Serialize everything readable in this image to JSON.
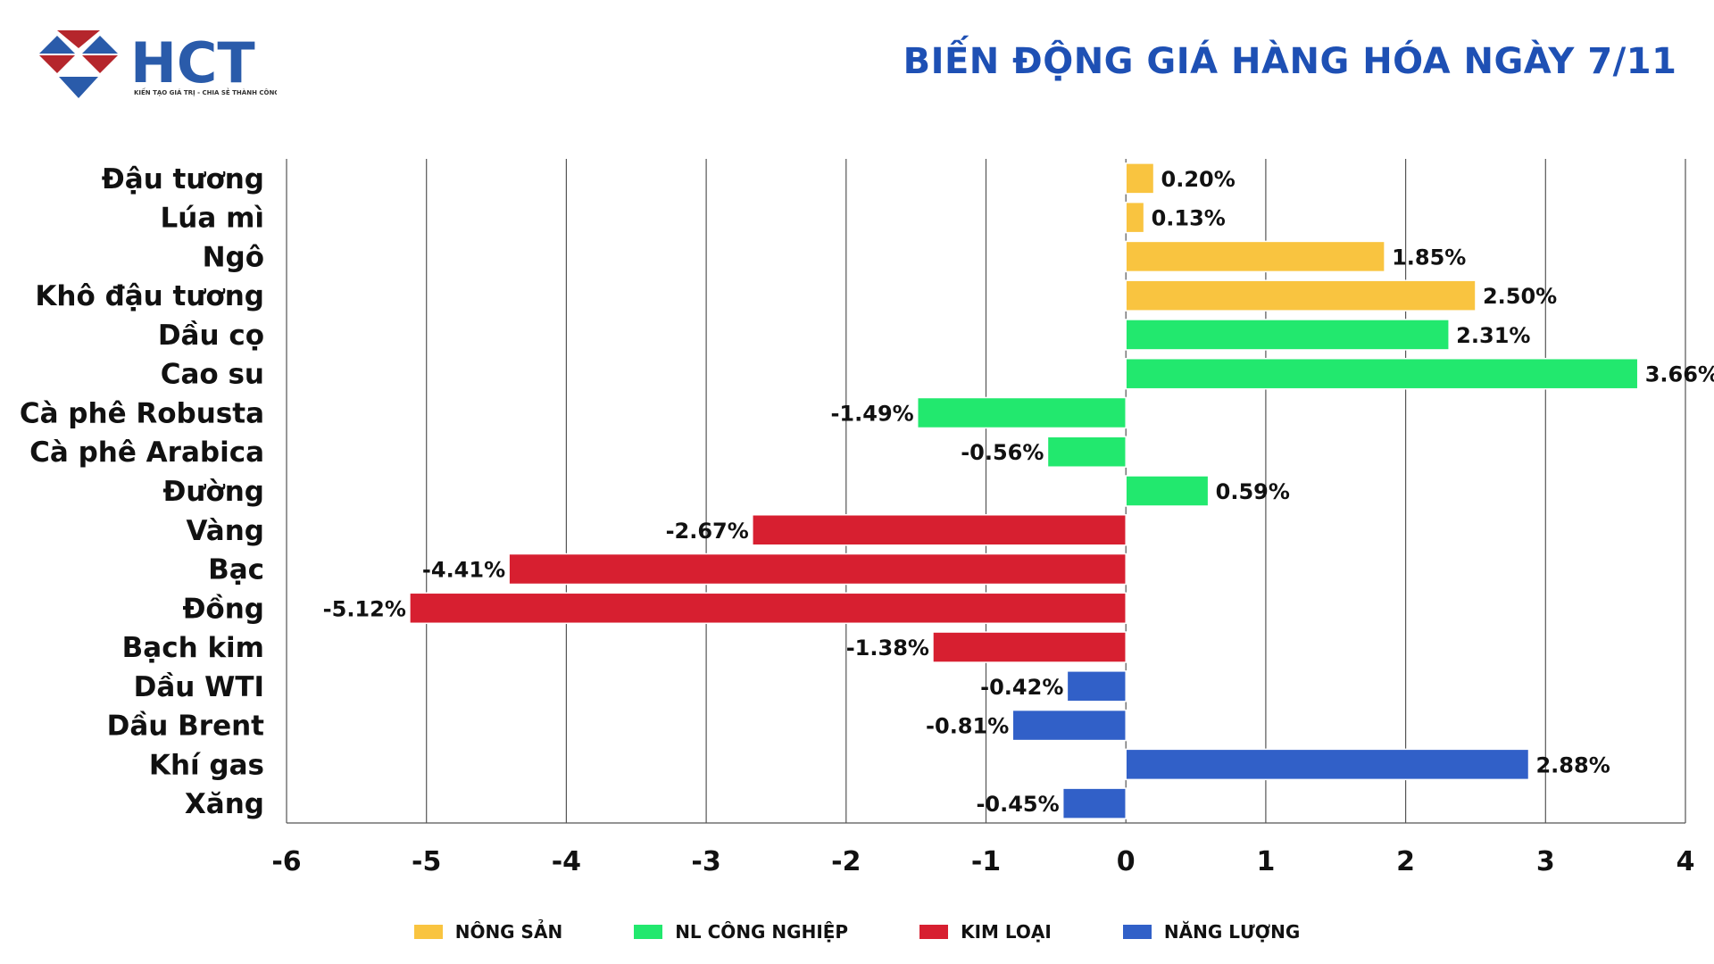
{
  "header": {
    "title": "BIẾN ĐỘNG GIÁ HÀNG HÓA NGÀY 7/11",
    "logo_text": "HCT",
    "logo_tagline": "KIẾN TẠO GIÁ TRỊ - CHIA SẺ THÀNH CÔNG"
  },
  "colors": {
    "NÔNG SẢN": "#F9C440",
    "NL CÔNG NGHIỆP": "#22E86E",
    "KIM LOẠI": "#D71F30",
    "NĂNG LƯỢNG": "#3160C8",
    "title": "#1E50B4"
  },
  "chart_data": {
    "type": "bar",
    "orientation": "horizontal",
    "title": "BIẾN ĐỘNG GIÁ HÀNG HÓA NGÀY 7/11",
    "xlim": [
      -6,
      4
    ],
    "xticks": [
      "-6",
      "-5",
      "-4",
      "-3",
      "-2",
      "-1",
      "0",
      "1",
      "2",
      "3",
      "4"
    ],
    "grid": true,
    "legend_placement": "bottom",
    "categories": [
      "Đậu tương",
      "Lúa mì",
      "Ngô",
      "Khô đậu tương",
      "Dầu cọ",
      "Cao su",
      "Cà phê Robusta",
      "Cà phê Arabica",
      "Đường",
      "Vàng",
      "Bạc",
      "Đồng",
      "Bạch kim",
      "Dầu WTI",
      "Dầu Brent",
      "Khí gas",
      "Xăng"
    ],
    "values": [
      0.2,
      0.13,
      1.85,
      2.5,
      2.31,
      3.66,
      -1.49,
      -0.56,
      0.59,
      -2.67,
      -4.41,
      -5.12,
      -1.38,
      -0.42,
      -0.81,
      2.88,
      -0.45
    ],
    "labels": [
      "0.20%",
      "0.13%",
      "1.85%",
      "2.50%",
      "2.31%",
      "3.66%",
      "-1.49%",
      "-0.56%",
      "0.59%",
      "-2.67%",
      "-4.41%",
      "-5.12%",
      "-1.38%",
      "-0.42%",
      "-0.81%",
      "2.88%",
      "-0.45%"
    ],
    "groups": [
      "NÔNG SẢN",
      "NÔNG SẢN",
      "NÔNG SẢN",
      "NÔNG SẢN",
      "NL CÔNG NGHIỆP",
      "NL CÔNG NGHIỆP",
      "NL CÔNG NGHIỆP",
      "NL CÔNG NGHIỆP",
      "NL CÔNG NGHIỆP",
      "KIM LOẠI",
      "KIM LOẠI",
      "KIM LOẠI",
      "KIM LOẠI",
      "NĂNG LƯỢNG",
      "NĂNG LƯỢNG",
      "NĂNG LƯỢNG",
      "NĂNG LƯỢNG"
    ],
    "legend": [
      "NÔNG SẢN",
      "NL CÔNG NGHIỆP",
      "KIM LOẠI",
      "NĂNG LƯỢNG"
    ]
  }
}
